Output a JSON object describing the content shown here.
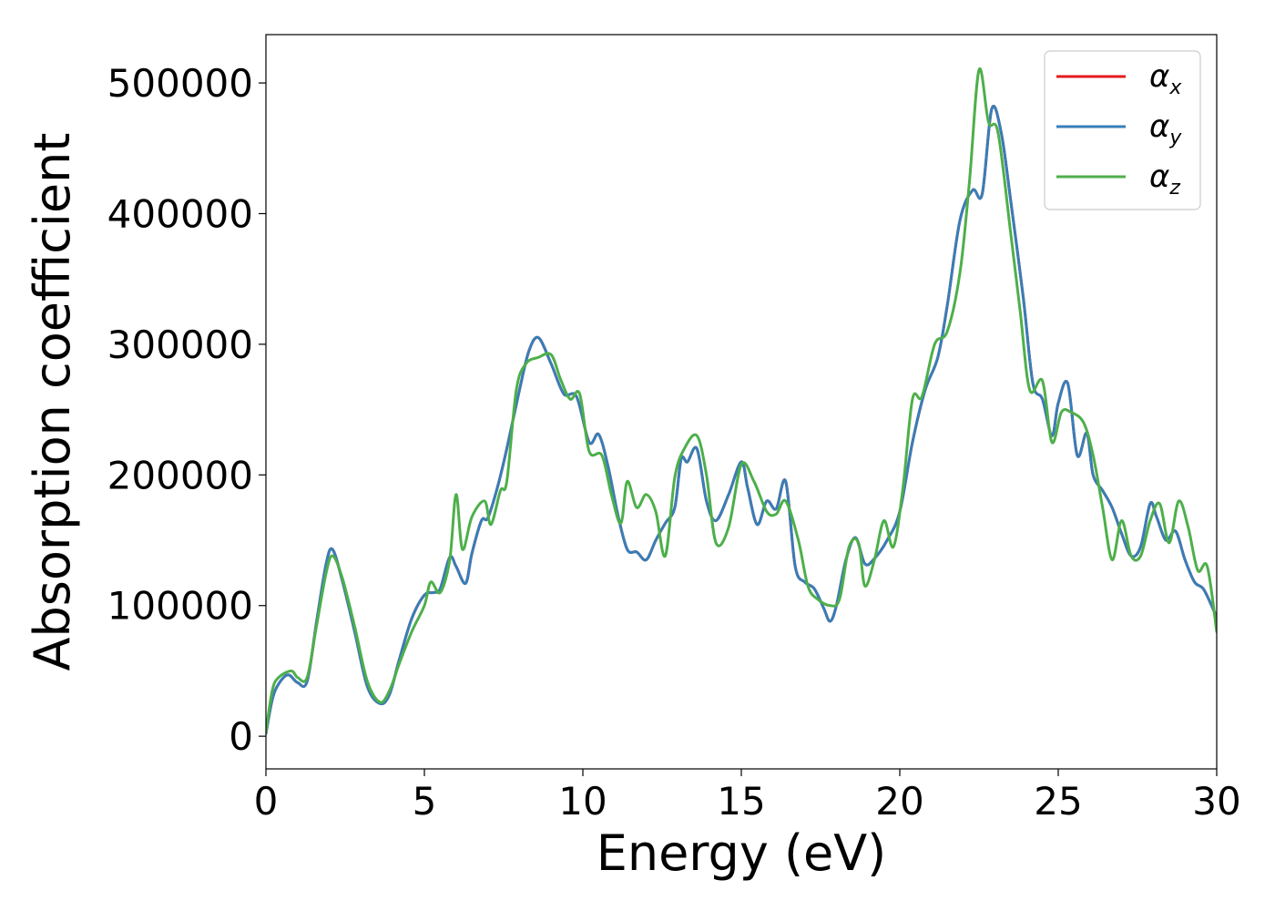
{
  "chart_data": {
    "type": "line",
    "title": "",
    "xlabel": "Energy (eV)",
    "ylabel": "Absorption coefficient",
    "xlim": [
      0,
      30
    ],
    "ylim": [
      -25000,
      537000
    ],
    "xticks": [
      0,
      5,
      10,
      15,
      20,
      25,
      30
    ],
    "yticks": [
      0,
      100000,
      200000,
      300000,
      400000,
      500000
    ],
    "xtick_labels": [
      "0",
      "5",
      "10",
      "15",
      "20",
      "25",
      "30"
    ],
    "ytick_labels": [
      "0",
      "100000",
      "200000",
      "300000",
      "400000",
      "500000"
    ],
    "grid": false,
    "legend_position": "top-right",
    "series": [
      {
        "name": "α",
        "subscript": "x",
        "color": "#e41a1c",
        "x": [
          0,
          0.2,
          0.4,
          0.7,
          1.0,
          1.3,
          1.6,
          1.9,
          2.1,
          2.4,
          2.8,
          3.2,
          3.6,
          3.9,
          4.2,
          4.6,
          5.0,
          5.3,
          5.5,
          5.8,
          6.0,
          6.3,
          6.5,
          6.8,
          7.0,
          7.3,
          7.6,
          8.0,
          8.3,
          8.6,
          9.0,
          9.4,
          9.8,
          10.2,
          10.5,
          10.8,
          11.1,
          11.4,
          11.7,
          12.0,
          12.3,
          12.6,
          12.9,
          13.1,
          13.3,
          13.6,
          13.9,
          14.2,
          14.6,
          15.0,
          15.2,
          15.5,
          15.8,
          16.1,
          16.4,
          16.7,
          17.0,
          17.3,
          17.6,
          17.8,
          18.0,
          18.3,
          18.6,
          18.9,
          19.2,
          19.6,
          20.0,
          20.4,
          20.8,
          21.2,
          21.5,
          21.9,
          22.3,
          22.6,
          22.9,
          23.2,
          23.5,
          23.9,
          24.2,
          24.5,
          24.8,
          25.0,
          25.3,
          25.6,
          25.9,
          26.1,
          26.4,
          26.7,
          27.0,
          27.3,
          27.6,
          27.9,
          28.1,
          28.4,
          28.7,
          29.0,
          29.3,
          29.6,
          30.0
        ],
        "y": [
          2000,
          28000,
          40000,
          47000,
          41000,
          42000,
          88000,
          132000,
          143000,
          120000,
          80000,
          38000,
          25000,
          32000,
          58000,
          90000,
          108000,
          110000,
          113000,
          137000,
          130000,
          117000,
          140000,
          165000,
          167000,
          190000,
          220000,
          265000,
          295000,
          305000,
          285000,
          262000,
          260000,
          225000,
          231000,
          206000,
          170000,
          143000,
          141000,
          135000,
          150000,
          163000,
          175000,
          212000,
          210000,
          220000,
          180000,
          165000,
          185000,
          210000,
          190000,
          162000,
          180000,
          174000,
          195000,
          130000,
          118000,
          113000,
          98000,
          88000,
          100000,
          135000,
          152000,
          132000,
          136000,
          150000,
          172000,
          225000,
          265000,
          290000,
          330000,
          395000,
          418000,
          415000,
          480000,
          462000,
          410000,
          335000,
          270000,
          258000,
          230000,
          255000,
          270000,
          215000,
          232000,
          200000,
          188000,
          175000,
          155000,
          138000,
          145000,
          178000,
          168000,
          150000,
          157000,
          135000,
          118000,
          112000,
          91000
        ]
      },
      {
        "name": "α",
        "subscript": "y",
        "color": "#377eb8",
        "x": [
          0,
          0.2,
          0.4,
          0.7,
          1.0,
          1.3,
          1.6,
          1.9,
          2.1,
          2.4,
          2.8,
          3.2,
          3.6,
          3.9,
          4.2,
          4.6,
          5.0,
          5.3,
          5.5,
          5.8,
          6.0,
          6.3,
          6.5,
          6.8,
          7.0,
          7.3,
          7.6,
          8.0,
          8.3,
          8.6,
          9.0,
          9.4,
          9.8,
          10.2,
          10.5,
          10.8,
          11.1,
          11.4,
          11.7,
          12.0,
          12.3,
          12.6,
          12.9,
          13.1,
          13.3,
          13.6,
          13.9,
          14.2,
          14.6,
          15.0,
          15.2,
          15.5,
          15.8,
          16.1,
          16.4,
          16.7,
          17.0,
          17.3,
          17.6,
          17.8,
          18.0,
          18.3,
          18.6,
          18.9,
          19.2,
          19.6,
          20.0,
          20.4,
          20.8,
          21.2,
          21.5,
          21.9,
          22.3,
          22.6,
          22.9,
          23.2,
          23.5,
          23.9,
          24.2,
          24.5,
          24.8,
          25.0,
          25.3,
          25.6,
          25.9,
          26.1,
          26.4,
          26.7,
          27.0,
          27.3,
          27.6,
          27.9,
          28.1,
          28.4,
          28.7,
          29.0,
          29.3,
          29.6,
          30.0
        ],
        "y": [
          2000,
          28000,
          40000,
          47000,
          41000,
          42000,
          88000,
          132000,
          143000,
          120000,
          80000,
          38000,
          25000,
          32000,
          58000,
          90000,
          108000,
          110000,
          113000,
          137000,
          130000,
          117000,
          140000,
          165000,
          167000,
          190000,
          220000,
          265000,
          295000,
          305000,
          285000,
          262000,
          260000,
          225000,
          231000,
          206000,
          170000,
          143000,
          141000,
          135000,
          150000,
          163000,
          175000,
          212000,
          210000,
          220000,
          180000,
          165000,
          185000,
          210000,
          190000,
          162000,
          180000,
          174000,
          195000,
          130000,
          118000,
          113000,
          98000,
          88000,
          100000,
          135000,
          152000,
          132000,
          136000,
          150000,
          172000,
          225000,
          265000,
          290000,
          330000,
          395000,
          418000,
          415000,
          480000,
          462000,
          410000,
          335000,
          270000,
          258000,
          230000,
          255000,
          270000,
          215000,
          232000,
          200000,
          188000,
          175000,
          155000,
          138000,
          145000,
          178000,
          168000,
          150000,
          157000,
          135000,
          118000,
          112000,
          91000
        ]
      },
      {
        "name": "α",
        "subscript": "z",
        "color": "#4daf4a",
        "x": [
          0,
          0.2,
          0.4,
          0.8,
          1.0,
          1.3,
          1.6,
          1.9,
          2.1,
          2.4,
          2.8,
          3.2,
          3.6,
          3.9,
          4.2,
          4.6,
          5.0,
          5.2,
          5.5,
          5.8,
          6.0,
          6.2,
          6.5,
          6.9,
          7.1,
          7.4,
          7.6,
          7.9,
          8.2,
          8.6,
          9.0,
          9.3,
          9.6,
          9.9,
          10.2,
          10.6,
          10.9,
          11.2,
          11.4,
          11.7,
          12.0,
          12.3,
          12.6,
          12.9,
          13.2,
          13.6,
          13.9,
          14.2,
          14.6,
          15.0,
          15.4,
          15.8,
          16.1,
          16.4,
          16.8,
          17.1,
          17.4,
          17.8,
          18.1,
          18.4,
          18.7,
          18.9,
          19.2,
          19.5,
          19.8,
          20.1,
          20.4,
          20.7,
          21.1,
          21.5,
          21.9,
          22.2,
          22.5,
          22.8,
          23.1,
          23.5,
          23.8,
          24.1,
          24.5,
          24.8,
          25.1,
          25.4,
          25.8,
          26.1,
          26.4,
          26.7,
          27.0,
          27.3,
          27.6,
          27.9,
          28.2,
          28.5,
          28.8,
          29.1,
          29.4,
          29.7,
          30.0
        ],
        "y": [
          3000,
          35000,
          45000,
          50000,
          45000,
          45000,
          85000,
          125000,
          138000,
          122000,
          84000,
          42000,
          26000,
          35000,
          55000,
          80000,
          100000,
          118000,
          110000,
          135000,
          185000,
          143000,
          168000,
          180000,
          162000,
          188000,
          195000,
          265000,
          285000,
          290000,
          292000,
          273000,
          258000,
          262000,
          218000,
          215000,
          185000,
          163000,
          195000,
          175000,
          185000,
          172000,
          138000,
          198000,
          220000,
          230000,
          200000,
          148000,
          160000,
          208000,
          195000,
          172000,
          170000,
          180000,
          150000,
          115000,
          105000,
          100000,
          105000,
          145000,
          148000,
          115000,
          135000,
          165000,
          145000,
          190000,
          258000,
          260000,
          300000,
          310000,
          355000,
          425000,
          510000,
          470000,
          462000,
          385000,
          325000,
          265000,
          272000,
          225000,
          248000,
          248000,
          240000,
          215000,
          175000,
          135000,
          165000,
          138000,
          138000,
          165000,
          178000,
          148000,
          180000,
          160000,
          127000,
          130000,
          80000
        ]
      }
    ]
  }
}
